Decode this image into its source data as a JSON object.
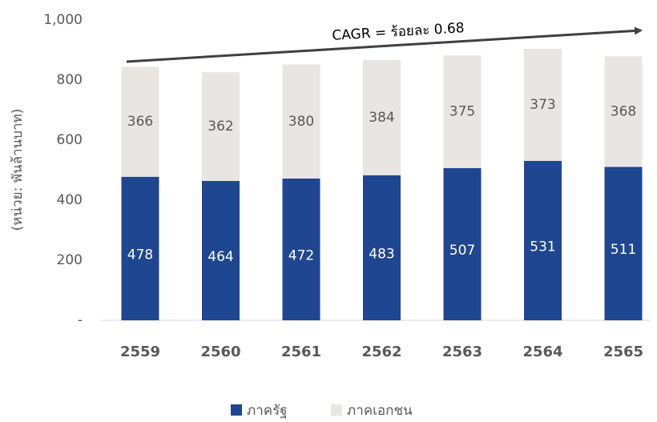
{
  "chart_data": {
    "type": "stacked_bar",
    "y_label": "(หน่วย: พันล้านบาท)",
    "annotation": "CAGR = ร้อยละ 0.68",
    "categories": [
      "2559",
      "2560",
      "2561",
      "2562",
      "2563",
      "2564",
      "2565"
    ],
    "series": [
      {
        "name": "ภาครัฐ",
        "color": "#1f4690",
        "label_color": "#ffffff",
        "values": [
          478,
          464,
          472,
          483,
          507,
          531,
          511
        ]
      },
      {
        "name": "ภาคเอกชน",
        "color": "#e8e5e3",
        "label_color": "#595959",
        "values": [
          366,
          362,
          380,
          384,
          375,
          373,
          368
        ]
      }
    ],
    "ylim": [
      0,
      1000
    ],
    "yticks": [
      {
        "value": 0,
        "label": "-"
      },
      200,
      400,
      600,
      800,
      {
        "value": 1000,
        "label": "1,000"
      }
    ],
    "grid": false,
    "legend": "bottom"
  }
}
